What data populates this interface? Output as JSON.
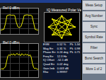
{
  "chart_data": [
    {
      "type": "line",
      "title": "Ref 0 dBm",
      "color": "#e8e800",
      "grid": true,
      "tick_labels": false,
      "x": [
        0,
        1,
        2,
        3,
        4,
        5,
        6,
        7,
        8,
        9,
        10,
        11,
        12,
        13,
        14,
        15,
        16,
        17,
        18,
        19,
        20,
        21,
        22,
        23,
        24
      ],
      "values": [
        -85,
        -84,
        -82,
        -60,
        -27,
        -25,
        -24,
        -26,
        -25,
        -27,
        -55,
        -72,
        -75,
        -70,
        -52,
        -26,
        -25,
        -24,
        -26,
        -25,
        -28,
        -60,
        -82,
        -84,
        -85
      ],
      "xlim": [
        0,
        24
      ],
      "xticks": [
        0,
        6,
        12,
        18,
        24
      ],
      "ylim": [
        -100,
        0
      ],
      "yticks": [
        -100,
        -80,
        -60,
        -40,
        -20,
        0
      ]
    },
    {
      "type": "line",
      "title": "Ref 0 dBm",
      "color": "#e8e800",
      "grid": true,
      "tick_labels": false,
      "x": [
        0,
        1,
        2,
        3,
        4,
        5,
        6,
        7,
        8,
        9,
        10,
        11,
        12,
        13,
        14,
        15,
        16,
        17,
        18,
        19,
        20,
        21,
        22,
        23,
        24,
        25,
        26,
        27,
        28,
        29,
        30,
        31,
        32
      ],
      "values": [
        -78,
        -74,
        -77,
        -72,
        -70,
        -55,
        -38,
        -33,
        -36,
        -31,
        -34,
        -30,
        -35,
        -32,
        -29,
        -34,
        -31,
        -36,
        -30,
        -33,
        -35,
        -31,
        -34,
        -32,
        -37,
        -33,
        -40,
        -58,
        -71,
        -75,
        -73,
        -77,
        -76
      ],
      "xlim": [
        0,
        32
      ],
      "xticks": [
        0,
        8,
        16,
        24,
        32
      ],
      "ylim": [
        -100,
        0
      ],
      "yticks": [
        -100,
        -80,
        -60,
        -40,
        -20,
        0
      ]
    },
    {
      "type": "scatter",
      "title": "IQ Measured Polar Vector",
      "color": "#e8e800",
      "marker": "circle",
      "line_style": "solid",
      "grid": false,
      "tick_labels": false,
      "x": [
        1,
        -0.71,
        0,
        0.71,
        -1,
        0.71,
        0,
        -0.71,
        1,
        0,
        -1,
        0,
        0.71,
        -0.71,
        0.71,
        -0.71,
        1
      ],
      "values": [
        0,
        0.71,
        -1,
        0.71,
        0,
        -0.71,
        1,
        -0.71,
        0,
        1,
        0,
        -1,
        0.71,
        -0.71,
        -0.71,
        0.71,
        0
      ],
      "xlim": [
        -1.3,
        1.3
      ],
      "xticks": [
        -1.3,
        1.3
      ],
      "ylim": [
        -1.3,
        1.3
      ],
      "yticks": [
        -1.3,
        1.3
      ]
    }
  ],
  "table": {
    "rows": [
      [
        "EVM",
        "0.52 %",
        "Pk",
        "1.34 %"
      ],
      [
        "Mag Err",
        "0.31 %",
        "Pk",
        "0.98 %"
      ],
      [
        "Phase Err",
        "0.24 deg",
        "Pk",
        "0.71 deg"
      ],
      [
        "Freq Err",
        "12.3 Hz",
        "",
        ""
      ],
      [
        "IQ Offset",
        "-52.1 dB",
        "",
        ""
      ],
      [
        "Quad Err",
        "0.02 deg",
        "",
        ""
      ],
      [
        "Gain Imb",
        "0.003 dB",
        "",
        ""
      ],
      [
        "Rho",
        "0.99997",
        "",
        ""
      ]
    ]
  },
  "menu": [
    "Meas Setup",
    "Avg Number",
    "Sync",
    "Symbol Rate",
    "Filter",
    "Burst Search",
    "More 1 of 2"
  ]
}
